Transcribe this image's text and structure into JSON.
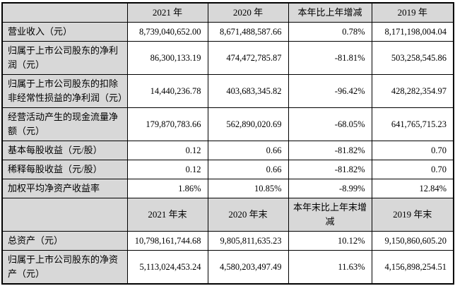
{
  "colors": {
    "header_bg": "#d8d8d8",
    "label_bg": "#d8d8d8",
    "value_bg": "#ffffff",
    "border": "#000000",
    "text": "#000000"
  },
  "table": {
    "sections": [
      {
        "header": [
          "",
          "2021 年",
          "2020 年",
          "本年比上年增减",
          "2019 年"
        ],
        "rows": [
          {
            "label": "营业收入（元）",
            "values": [
              "8,739,040,652.00",
              "8,671,488,587.66",
              "0.78%",
              "8,171,198,004.04"
            ]
          },
          {
            "label": "归属于上市公司股东的净利润（元）",
            "values": [
              "86,300,133.19",
              "474,472,785.87",
              "-81.81%",
              "503,258,545.86"
            ]
          },
          {
            "label": "归属于上市公司股东的扣除非经常性损益的净利润（元）",
            "values": [
              "14,440,236.78",
              "403,683,345.82",
              "-96.42%",
              "428,282,354.97"
            ]
          },
          {
            "label": "经营活动产生的现金流量净额（元）",
            "values": [
              "179,870,783.66",
              "562,890,020.69",
              "-68.05%",
              "641,765,715.23"
            ]
          },
          {
            "label": "基本每股收益（元/股）",
            "values": [
              "0.12",
              "0.66",
              "-81.82%",
              "0.70"
            ]
          },
          {
            "label": "稀释每股收益（元/股）",
            "values": [
              "0.12",
              "0.66",
              "-81.82%",
              "0.70"
            ]
          },
          {
            "label": "加权平均净资产收益率",
            "values": [
              "1.86%",
              "10.85%",
              "-8.99%",
              "12.84%"
            ]
          }
        ]
      },
      {
        "header": [
          "",
          "2021 年末",
          "2020 年末",
          "本年末比上年末增减",
          "2019 年末"
        ],
        "rows": [
          {
            "label": "总资产（元）",
            "values": [
              "10,798,161,744.68",
              "9,805,811,635.23",
              "10.12%",
              "9,150,860,605.20"
            ]
          },
          {
            "label": "归属于上市公司股东的净资产（元）",
            "values": [
              "5,113,024,453.24",
              "4,580,203,497.49",
              "11.63%",
              "4,156,898,254.51"
            ]
          }
        ]
      }
    ]
  }
}
